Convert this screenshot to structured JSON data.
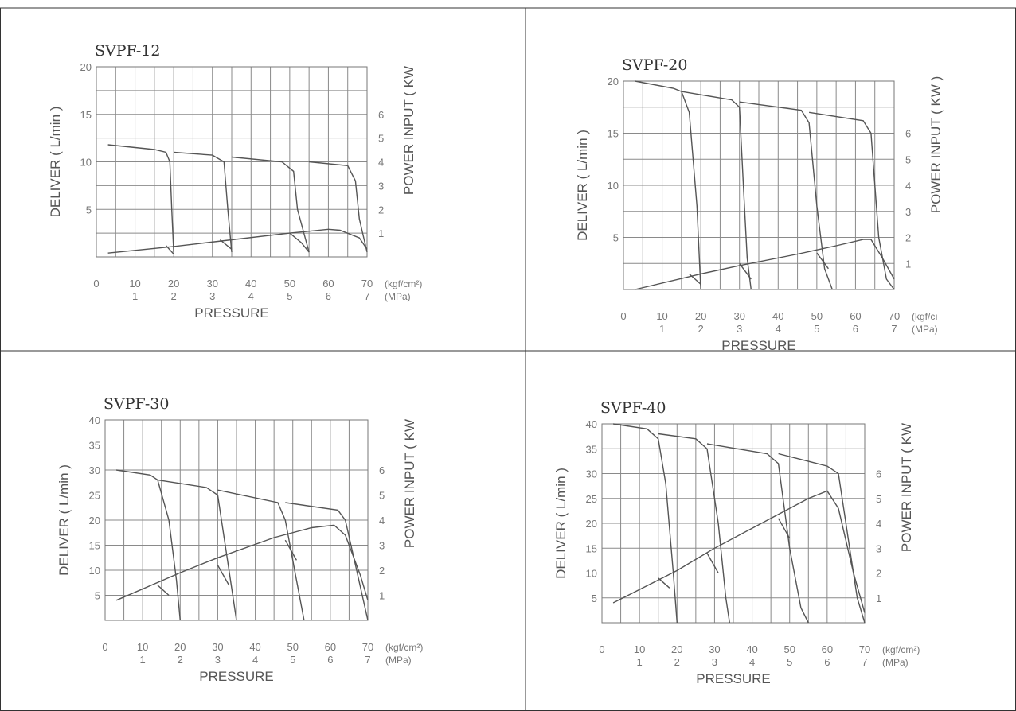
{
  "chart_data": [
    {
      "type": "line",
      "title": "SVPF-12",
      "xlabel": "PRESSURE",
      "ylabel": "DELIVER ( L/min )",
      "y2label": "POWER INPUT ( KW",
      "x_unit_1": "(kgf/cm²)",
      "x_unit_2": "(MPa)",
      "x_ticks": [
        "0",
        "10",
        "20",
        "30",
        "40",
        "50",
        "60",
        "70"
      ],
      "x2_ticks": [
        "1",
        "2",
        "3",
        "4",
        "5",
        "6",
        "7"
      ],
      "y_ticks": [
        "5",
        "10",
        "15",
        "20"
      ],
      "y2_ticks": [
        "1",
        "2",
        "3",
        "4",
        "5",
        "6"
      ],
      "xlim": [
        0,
        70
      ],
      "ylim": [
        0,
        20
      ],
      "y2lim": [
        0,
        8
      ],
      "grid": true,
      "series": [
        {
          "values": [
            [
              3,
              11.8
            ],
            [
              15,
              11.3
            ],
            [
              18,
              11
            ],
            [
              19,
              10
            ],
            [
              19.5,
              5
            ],
            [
              20,
              0.5
            ]
          ]
        },
        {
          "values": [
            [
              20,
              11
            ],
            [
              30,
              10.7
            ],
            [
              33,
              10
            ],
            [
              34,
              5
            ],
            [
              35,
              0.5
            ]
          ]
        },
        {
          "values": [
            [
              35,
              10.5
            ],
            [
              48,
              10
            ],
            [
              51,
              9
            ],
            [
              52,
              5
            ],
            [
              55,
              0.5
            ]
          ]
        },
        {
          "values": [
            [
              55,
              10
            ],
            [
              65,
              9.6
            ],
            [
              67,
              8
            ],
            [
              68,
              4
            ],
            [
              70,
              0.5
            ]
          ]
        },
        {
          "values": [
            [
              3,
              0.4
            ],
            [
              20,
              1.1
            ],
            [
              35,
              1.8
            ],
            [
              50,
              2.5
            ],
            [
              60,
              2.9
            ],
            [
              63,
              2.8
            ],
            [
              68,
              2
            ],
            [
              70,
              0.8
            ]
          ]
        },
        {
          "values": [
            [
              18,
              1.2
            ],
            [
              20,
              0.3
            ]
          ]
        },
        {
          "values": [
            [
              32,
              1.8
            ],
            [
              35,
              0.8
            ]
          ]
        },
        {
          "values": [
            [
              50,
              2.5
            ],
            [
              53,
              1.5
            ],
            [
              55,
              0.5
            ]
          ]
        }
      ]
    },
    {
      "type": "line",
      "title": "SVPF-20",
      "xlabel": "PRESSURE",
      "ylabel": "DELIVER ( L/min )",
      "y2label": "POWER INPUT ( KW )",
      "x_unit_1": "(kgf/cı",
      "x_unit_2": "(MPa)",
      "x_ticks": [
        "0",
        "10",
        "20",
        "30",
        "40",
        "50",
        "60",
        "70"
      ],
      "x2_ticks": [
        "1",
        "2",
        "3",
        "4",
        "5",
        "6",
        "7"
      ],
      "y_ticks": [
        "5",
        "10",
        "15",
        "20"
      ],
      "y2_ticks": [
        "1",
        "2",
        "3",
        "4",
        "5",
        "6"
      ],
      "xlim": [
        0,
        70
      ],
      "ylim": [
        0,
        20
      ],
      "y2lim": [
        0,
        8
      ],
      "grid": true,
      "series": [
        {
          "values": [
            [
              3,
              20
            ],
            [
              13,
              19.3
            ],
            [
              15,
              19
            ],
            [
              17,
              17
            ],
            [
              19,
              8
            ],
            [
              20,
              0
            ]
          ]
        },
        {
          "values": [
            [
              15,
              19
            ],
            [
              28,
              18.2
            ],
            [
              30,
              17.5
            ],
            [
              31,
              10
            ],
            [
              32,
              3
            ],
            [
              33,
              0
            ]
          ]
        },
        {
          "values": [
            [
              30,
              18
            ],
            [
              46,
              17.2
            ],
            [
              48,
              16
            ],
            [
              50,
              8
            ],
            [
              52,
              2
            ],
            [
              54,
              0
            ]
          ]
        },
        {
          "values": [
            [
              48,
              17
            ],
            [
              62,
              16.2
            ],
            [
              64,
              15
            ],
            [
              66,
              5
            ],
            [
              68,
              1
            ],
            [
              70,
              0
            ]
          ]
        },
        {
          "values": [
            [
              3,
              0
            ],
            [
              20,
              1.5
            ],
            [
              30,
              2.3
            ],
            [
              45,
              3.4
            ],
            [
              55,
              4.2
            ],
            [
              62,
              4.8
            ],
            [
              64,
              4.8
            ],
            [
              67,
              3
            ],
            [
              70,
              1
            ]
          ]
        },
        {
          "values": [
            [
              17,
              1.5
            ],
            [
              20,
              0.5
            ]
          ]
        },
        {
          "values": [
            [
              30,
              2.5
            ],
            [
              33,
              1
            ]
          ]
        },
        {
          "values": [
            [
              50,
              3.5
            ],
            [
              53,
              2
            ]
          ]
        }
      ]
    },
    {
      "type": "line",
      "title": "SVPF-30",
      "xlabel": "PRESSURE",
      "ylabel": "DELIVER ( L/min )",
      "y2label": "POWER INPUT ( KW",
      "x_unit_1": "(kgf/cm²)",
      "x_unit_2": "(MPa)",
      "x_ticks": [
        "0",
        "10",
        "20",
        "30",
        "40",
        "50",
        "60",
        "70"
      ],
      "x2_ticks": [
        "1",
        "2",
        "3",
        "4",
        "5",
        "6",
        "7"
      ],
      "y_ticks": [
        "5",
        "10",
        "15",
        "20",
        "25",
        "30",
        "35",
        "40"
      ],
      "y2_ticks": [
        "1",
        "2",
        "3",
        "4",
        "5",
        "6"
      ],
      "xlim": [
        0,
        70
      ],
      "ylim": [
        0,
        40
      ],
      "y2lim": [
        0,
        8
      ],
      "grid": true,
      "series": [
        {
          "values": [
            [
              3,
              30
            ],
            [
              12,
              29
            ],
            [
              14,
              28
            ],
            [
              17,
              20
            ],
            [
              19,
              8
            ],
            [
              20,
              0
            ]
          ]
        },
        {
          "values": [
            [
              14,
              28
            ],
            [
              27,
              26.5
            ],
            [
              30,
              25
            ],
            [
              33,
              10
            ],
            [
              35,
              0
            ]
          ]
        },
        {
          "values": [
            [
              30,
              26
            ],
            [
              46,
              23.5
            ],
            [
              48,
              20
            ],
            [
              51,
              8
            ],
            [
              53,
              0
            ]
          ]
        },
        {
          "values": [
            [
              48,
              23.5
            ],
            [
              62,
              22
            ],
            [
              64,
              20
            ],
            [
              67,
              10
            ],
            [
              70,
              0
            ]
          ]
        },
        {
          "values": [
            [
              3,
              4
            ],
            [
              20,
              9.5
            ],
            [
              30,
              12.5
            ],
            [
              45,
              16.5
            ],
            [
              55,
              18.5
            ],
            [
              61,
              19
            ],
            [
              64,
              17
            ],
            [
              68,
              9
            ],
            [
              70,
              4
            ]
          ]
        },
        {
          "values": [
            [
              14,
              7
            ],
            [
              17,
              5
            ]
          ]
        },
        {
          "values": [
            [
              30,
              11
            ],
            [
              33,
              7
            ]
          ]
        },
        {
          "values": [
            [
              48,
              16
            ],
            [
              51,
              12
            ]
          ]
        }
      ]
    },
    {
      "type": "line",
      "title": "SVPF-40",
      "xlabel": "PRESSURE",
      "ylabel": "DELIVER ( L/min )",
      "y2label": "POWER INPUT ( KW",
      "x_unit_1": "(kgf/cm²)",
      "x_unit_2": "(MPa)",
      "x_ticks": [
        "0",
        "10",
        "20",
        "30",
        "40",
        "50",
        "60",
        "70"
      ],
      "x2_ticks": [
        "1",
        "2",
        "3",
        "4",
        "5",
        "6",
        "7"
      ],
      "y_ticks": [
        "5",
        "10",
        "15",
        "20",
        "25",
        "30",
        "35",
        "40"
      ],
      "y2_ticks": [
        "1",
        "2",
        "3",
        "4",
        "5",
        "6"
      ],
      "xlim": [
        0,
        70
      ],
      "ylim": [
        0,
        40
      ],
      "y2lim": [
        0,
        8
      ],
      "grid": true,
      "series": [
        {
          "values": [
            [
              3,
              40
            ],
            [
              12,
              39
            ],
            [
              15,
              37
            ],
            [
              17,
              28
            ],
            [
              19,
              10
            ],
            [
              20,
              0
            ]
          ]
        },
        {
          "values": [
            [
              15,
              38
            ],
            [
              25,
              37
            ],
            [
              28,
              35
            ],
            [
              31,
              20
            ],
            [
              33,
              5
            ],
            [
              34,
              0
            ]
          ]
        },
        {
          "values": [
            [
              28,
              36
            ],
            [
              44,
              34
            ],
            [
              47,
              32
            ],
            [
              50,
              15
            ],
            [
              53,
              3
            ],
            [
              55,
              0
            ]
          ]
        },
        {
          "values": [
            [
              47,
              34
            ],
            [
              60,
              31.5
            ],
            [
              63,
              30
            ],
            [
              66,
              15
            ],
            [
              68,
              5
            ],
            [
              70,
              0
            ]
          ]
        },
        {
          "values": [
            [
              3,
              4
            ],
            [
              20,
              10.5
            ],
            [
              30,
              15
            ],
            [
              45,
              21
            ],
            [
              55,
              25
            ],
            [
              60,
              26.5
            ],
            [
              63,
              23
            ],
            [
              67,
              10
            ],
            [
              70,
              2
            ]
          ]
        },
        {
          "values": [
            [
              15,
              9
            ],
            [
              18,
              7
            ]
          ]
        },
        {
          "values": [
            [
              28,
              14
            ],
            [
              31,
              10
            ]
          ]
        },
        {
          "values": [
            [
              47,
              21
            ],
            [
              50,
              17
            ]
          ]
        }
      ]
    }
  ]
}
